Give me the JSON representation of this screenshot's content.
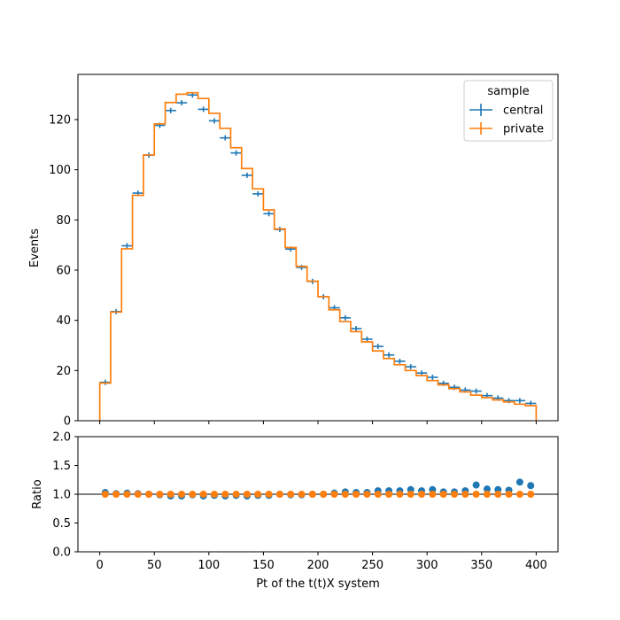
{
  "chart_data": [
    {
      "type": "line",
      "drawstyle": "steps",
      "panel": "main",
      "xlabel": "",
      "ylabel": "Events",
      "xlim": [
        -20,
        420
      ],
      "ylim": [
        0,
        138
      ],
      "xticks": [
        0,
        50,
        100,
        150,
        200,
        250,
        300,
        350,
        400
      ],
      "yticks": [
        0,
        20,
        40,
        60,
        80,
        100,
        120
      ],
      "grid": false,
      "legend": {
        "title": "sample",
        "position": "top-right"
      },
      "bin_edges": [
        0,
        10,
        20,
        30,
        40,
        50,
        60,
        70,
        80,
        90,
        100,
        110,
        120,
        130,
        140,
        150,
        160,
        170,
        180,
        190,
        200,
        210,
        220,
        230,
        240,
        250,
        260,
        270,
        280,
        290,
        300,
        310,
        320,
        330,
        340,
        350,
        360,
        370,
        380,
        390,
        400
      ],
      "series": [
        {
          "name": "central",
          "color": "#1f77b4",
          "style": "errorbar",
          "values": [
            15.3,
            43.5,
            69.7,
            90.7,
            105.8,
            117.7,
            123.6,
            126.7,
            129.8,
            124.1,
            119.5,
            112.7,
            106.7,
            97.8,
            90.4,
            82.5,
            76.2,
            68.4,
            61.1,
            55.5,
            49.4,
            45.0,
            41.0,
            36.7,
            32.5,
            29.6,
            26.2,
            23.7,
            21.5,
            19.0,
            17.3,
            14.9,
            13.3,
            12.2,
            11.8,
            10.0,
            9.0,
            8.0,
            8.0,
            6.9
          ]
        },
        {
          "name": "private",
          "color": "#ff7f0e",
          "style": "step",
          "values": [
            15.0,
            43.3,
            68.5,
            89.8,
            105.9,
            118.3,
            126.8,
            130.1,
            130.7,
            128.4,
            122.5,
            116.5,
            108.8,
            100.5,
            92.4,
            84.0,
            76.4,
            69.0,
            61.5,
            55.6,
            49.4,
            44.2,
            39.5,
            35.5,
            31.4,
            27.8,
            24.8,
            22.3,
            20.0,
            18.0,
            16.0,
            14.3,
            12.8,
            11.5,
            10.2,
            9.2,
            8.3,
            7.5,
            6.6,
            6.0
          ]
        }
      ]
    },
    {
      "type": "scatter",
      "panel": "ratio",
      "xlabel": "Pt of the t(t)X system",
      "ylabel": "Ratio",
      "xlim": [
        -20,
        420
      ],
      "ylim": [
        0,
        2
      ],
      "xticks": [
        0,
        50,
        100,
        150,
        200,
        250,
        300,
        350,
        400
      ],
      "yticks": [
        0.0,
        0.5,
        1.0,
        1.5,
        2.0
      ],
      "ytick_labels": [
        "0.0",
        "0.5",
        "1.0",
        "1.5",
        "2.0"
      ],
      "reference_line": 1.0,
      "grid": false,
      "x": [
        5,
        15,
        25,
        35,
        45,
        55,
        65,
        75,
        85,
        95,
        105,
        115,
        125,
        135,
        145,
        155,
        165,
        175,
        185,
        195,
        205,
        215,
        225,
        235,
        245,
        255,
        265,
        275,
        285,
        295,
        305,
        315,
        325,
        335,
        345,
        355,
        365,
        375,
        385,
        395
      ],
      "series": [
        {
          "name": "central",
          "color": "#1f77b4",
          "values": [
            1.03,
            1.01,
            1.02,
            1.01,
            1.0,
            0.99,
            0.97,
            0.97,
            0.99,
            0.97,
            0.98,
            0.97,
            0.98,
            0.97,
            0.98,
            0.98,
            1.0,
            0.99,
            0.99,
            1.0,
            1.0,
            1.02,
            1.04,
            1.03,
            1.03,
            1.06,
            1.06,
            1.06,
            1.08,
            1.06,
            1.08,
            1.04,
            1.04,
            1.06,
            1.16,
            1.09,
            1.08,
            1.07,
            1.21,
            1.15
          ]
        },
        {
          "name": "private",
          "color": "#ff7f0e",
          "values": [
            1,
            1,
            1,
            1,
            1,
            1,
            1,
            1,
            1,
            1,
            1,
            1,
            1,
            1,
            1,
            1,
            1,
            1,
            1,
            1,
            1,
            1,
            1,
            1,
            1,
            1,
            1,
            1,
            1,
            1,
            1,
            1,
            1,
            1,
            1,
            1,
            1,
            1,
            1,
            1
          ]
        }
      ]
    }
  ]
}
